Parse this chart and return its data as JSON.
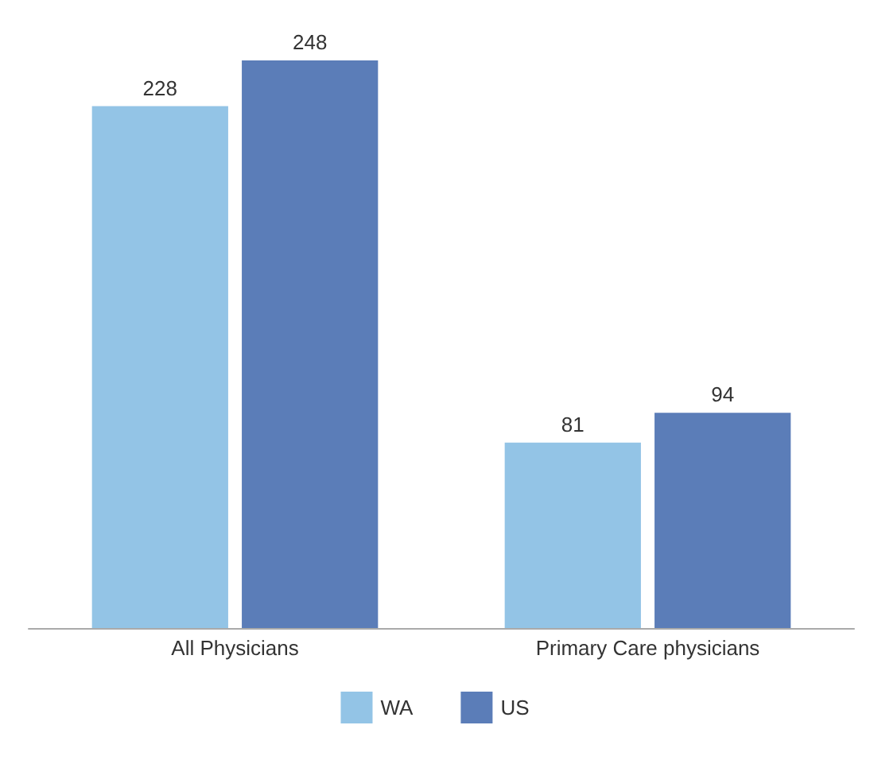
{
  "chart_data": {
    "type": "bar",
    "categories": [
      "All Physicians",
      "Primary Care physicians"
    ],
    "series": [
      {
        "name": "WA",
        "color": "#93c4e6",
        "values": [
          228,
          81
        ]
      },
      {
        "name": "US",
        "color": "#5b7db8",
        "values": [
          248,
          94
        ]
      }
    ],
    "data_labels": true,
    "legend": "bottom",
    "grid": false
  }
}
